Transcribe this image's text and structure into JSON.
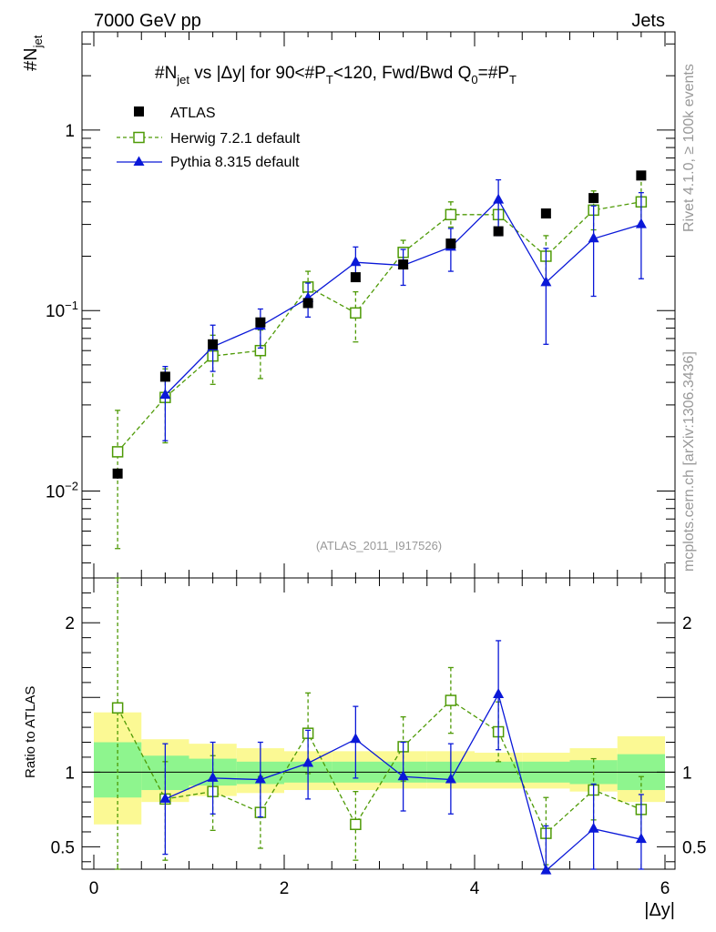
{
  "header": {
    "left": "7000 GeV pp",
    "right": "Jets"
  },
  "side": {
    "rivet": "Rivet 4.1.0, ≥ 100k events",
    "mcplots": "mcplots.cern.ch [arXiv:1306.3436]"
  },
  "chart_data": {
    "type": "scatter",
    "title": "#N_jet vs |Δy| for 90<#P_T<120, Fwd/Bwd Q_0=#P_T",
    "title_parts": {
      "a": "#N",
      "a_sub": "jet",
      "b": " vs |Δy| for 90<#P",
      "b_sub": "T",
      "c": "<120, Fwd/Bwd Q",
      "c_sub": "0",
      "d": "=#P",
      "d_sub": "T"
    },
    "ylabel_main": {
      "base": "#N",
      "sub": "jet"
    },
    "ylabel_ratio": "Ratio to ATLAS",
    "xlabel": "|Δy|",
    "analysis_id": "(ATLAS_2011_I917526)",
    "xlim": [
      -0.15,
      6.05
    ],
    "ylim_main": [
      0.0033,
      3.5
    ],
    "ylim_ratio": [
      0.35,
      2.3
    ],
    "x_ticks": [
      "0",
      "2",
      "4",
      "6"
    ],
    "y_ticks_main": [
      {
        "label": "1",
        "exp": ""
      },
      {
        "label": "10",
        "exp": "−1"
      },
      {
        "label": "10",
        "exp": "−2"
      }
    ],
    "y_ticks_ratio": [
      "2",
      "1",
      "0.5"
    ],
    "x": [
      0.25,
      0.75,
      1.25,
      1.75,
      2.25,
      2.75,
      3.25,
      3.75,
      4.25,
      4.75,
      5.25,
      5.75
    ],
    "bin_edges": [
      0,
      0.5,
      1.0,
      1.5,
      2.0,
      2.5,
      3.0,
      3.5,
      4.0,
      4.5,
      5.0,
      5.5,
      6.0
    ],
    "legend": [
      {
        "name": "ATLAS"
      },
      {
        "name": "Herwig 7.2.1 default"
      },
      {
        "name": "Pythia 8.315 default"
      }
    ],
    "series": [
      {
        "name": "ATLAS",
        "color": "#000000",
        "marker": "square-filled",
        "values": [
          0.0125,
          0.043,
          0.065,
          0.086,
          0.11,
          0.153,
          0.18,
          0.235,
          0.275,
          0.345,
          0.42,
          0.56
        ],
        "err": [
          0.0008,
          0.0025,
          0.003,
          0.004,
          0.005,
          0.006,
          0.007,
          0.009,
          0.01,
          0.012,
          0.02,
          0.03
        ]
      },
      {
        "name": "Herwig 7.2.1 default",
        "color": "#4e9a06",
        "marker": "square-open",
        "values": [
          0.0165,
          0.033,
          0.056,
          0.06,
          0.135,
          0.097,
          0.21,
          0.34,
          0.34,
          0.2,
          0.36,
          0.4
        ],
        "err_lo": [
          0.0117,
          0.0145,
          0.017,
          0.018,
          0.03,
          0.03,
          0.035,
          0.05,
          0.06,
          0.06,
          0.08,
          0.1
        ],
        "err_hi": [
          0.0115,
          0.0145,
          0.017,
          0.018,
          0.03,
          0.03,
          0.035,
          0.06,
          0.06,
          0.06,
          0.1,
          0.16
        ],
        "ratio": [
          1.43,
          0.82,
          0.87,
          0.73,
          1.26,
          0.65,
          1.17,
          1.48,
          1.27,
          0.59,
          0.88,
          0.75
        ],
        "ratio_lo": [
          1.13,
          0.41,
          0.26,
          0.24,
          0.27,
          0.24,
          0.23,
          0.22,
          0.2,
          0.21,
          0.2,
          0.2
        ],
        "ratio_hi": [
          0.87,
          0.25,
          0.24,
          0.24,
          0.27,
          0.22,
          0.2,
          0.22,
          0.2,
          0.24,
          0.21,
          0.22
        ]
      },
      {
        "name": "Pythia 8.315 default",
        "color": "#0a18d8",
        "marker": "triangle-filled",
        "values": [
          null,
          0.034,
          0.063,
          0.082,
          0.117,
          0.185,
          0.178,
          0.225,
          0.41,
          0.143,
          0.25,
          0.3
        ],
        "err_lo": [
          null,
          0.015,
          0.017,
          0.02,
          0.025,
          0.04,
          0.04,
          0.06,
          0.15,
          0.078,
          0.13,
          0.15
        ],
        "err_hi": [
          null,
          0.015,
          0.02,
          0.02,
          0.025,
          0.04,
          0.04,
          0.06,
          0.12,
          0.078,
          0.13,
          0.15
        ],
        "ratio": [
          null,
          0.82,
          0.96,
          0.95,
          1.06,
          1.22,
          0.97,
          0.95,
          1.52,
          0.34,
          0.62,
          0.55
        ],
        "ratio_lo": [
          null,
          0.37,
          0.24,
          0.25,
          0.24,
          0.26,
          0.23,
          0.23,
          0.37,
          0.3,
          0.3,
          0.3
        ],
        "ratio_hi": [
          null,
          0.37,
          0.24,
          0.25,
          0.22,
          0.22,
          0.23,
          0.24,
          0.36,
          0.3,
          0.3,
          0.3
        ]
      }
    ],
    "ratio_bands": {
      "yellow_lo": [
        0.65,
        0.8,
        0.84,
        0.86,
        0.88,
        0.88,
        0.89,
        0.89,
        0.89,
        0.89,
        0.87,
        0.8
      ],
      "yellow_hi": [
        1.4,
        1.22,
        1.19,
        1.16,
        1.14,
        1.14,
        1.14,
        1.14,
        1.13,
        1.13,
        1.16,
        1.24
      ],
      "green_lo": [
        0.83,
        0.88,
        0.91,
        0.92,
        0.93,
        0.93,
        0.93,
        0.93,
        0.93,
        0.93,
        0.92,
        0.88
      ],
      "green_hi": [
        1.2,
        1.11,
        1.09,
        1.07,
        1.07,
        1.07,
        1.07,
        1.07,
        1.07,
        1.07,
        1.08,
        1.12
      ]
    }
  }
}
